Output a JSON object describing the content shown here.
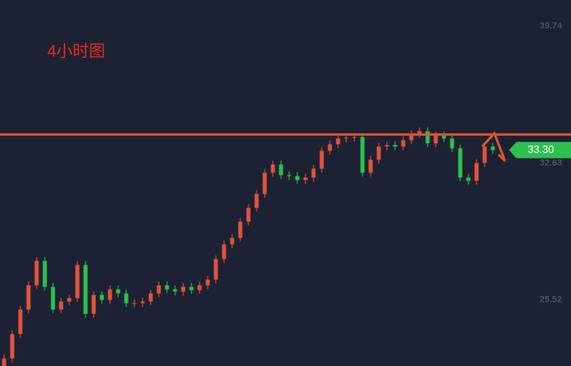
{
  "chart_data": {
    "type": "candlestick",
    "title": "4小时图",
    "open": [
      22.05,
      22.48,
      23.75,
      25.02,
      26.28,
      27.55,
      26.2,
      25.02,
      25.44,
      25.61,
      27.34,
      24.8,
      25.78,
      25.52,
      26.07,
      25.86,
      25.35,
      25.35,
      25.44,
      25.86,
      26.28,
      26.07,
      25.95,
      26.2,
      26.03,
      26.28,
      26.58,
      27.64,
      28.4,
      28.74,
      29.58,
      30.3,
      31.02,
      32.12,
      32.55,
      32.0,
      31.95,
      31.74,
      31.87,
      32.33,
      33.26,
      33.6,
      33.9,
      33.94,
      33.98,
      32.12,
      32.8,
      33.48,
      33.56,
      33.48,
      33.81,
      34.15,
      34.28,
      33.65,
      34.07,
      33.9,
      33.39,
      31.87,
      31.7,
      32.63,
      33.48
    ],
    "high": [
      22.68,
      23.95,
      25.22,
      26.48,
      27.75,
      27.75,
      26.4,
      25.64,
      25.81,
      27.54,
      27.54,
      25.98,
      25.98,
      26.27,
      26.27,
      26.06,
      25.55,
      25.64,
      26.06,
      26.48,
      26.48,
      26.27,
      26.4,
      26.4,
      26.48,
      26.78,
      27.84,
      28.6,
      28.94,
      29.78,
      30.5,
      31.22,
      32.32,
      32.75,
      32.75,
      32.2,
      32.15,
      32.07,
      32.53,
      33.46,
      33.8,
      34.1,
      34.14,
      34.18,
      34.18,
      33.0,
      33.68,
      33.76,
      33.76,
      34.01,
      34.35,
      34.48,
      34.48,
      34.27,
      34.27,
      34.1,
      33.59,
      32.07,
      32.83,
      33.68,
      33.68
    ],
    "low": [
      21.85,
      22.28,
      23.55,
      24.82,
      26.08,
      26.0,
      24.82,
      24.82,
      25.24,
      25.41,
      24.6,
      24.6,
      25.32,
      25.32,
      25.66,
      25.15,
      25.15,
      25.15,
      25.24,
      25.66,
      25.87,
      25.75,
      25.75,
      25.83,
      25.83,
      26.08,
      26.38,
      27.44,
      28.2,
      28.54,
      29.38,
      30.1,
      30.82,
      31.92,
      31.8,
      31.75,
      31.54,
      31.54,
      31.67,
      32.13,
      33.06,
      33.4,
      33.7,
      33.74,
      31.92,
      31.92,
      32.6,
      33.28,
      33.28,
      33.28,
      33.61,
      33.95,
      33.45,
      33.45,
      33.7,
      33.19,
      31.67,
      31.5,
      31.5,
      32.43,
      33.1
    ],
    "close": [
      22.48,
      23.75,
      25.02,
      26.28,
      27.55,
      26.2,
      25.02,
      25.44,
      25.61,
      27.34,
      24.8,
      25.78,
      25.52,
      26.07,
      25.86,
      25.35,
      25.35,
      25.44,
      25.86,
      26.28,
      26.07,
      25.95,
      26.2,
      26.03,
      26.28,
      26.58,
      27.64,
      28.4,
      28.74,
      29.58,
      30.3,
      31.02,
      32.12,
      32.55,
      32.0,
      31.95,
      31.74,
      31.87,
      32.33,
      33.26,
      33.6,
      33.9,
      33.94,
      33.98,
      32.12,
      32.8,
      33.48,
      33.56,
      33.48,
      33.81,
      34.15,
      34.28,
      33.65,
      34.07,
      33.9,
      33.39,
      31.87,
      31.7,
      32.63,
      33.48,
      33.3
    ],
    "up_color": "#e0533d",
    "down_color": "#2fbf4f",
    "ylim": [
      22.09,
      41.09
    ],
    "yticks": [
      25.52,
      32.63,
      39.74
    ],
    "hline": {
      "value": 34.11,
      "color": "#d9532f"
    },
    "last_price": {
      "value": 33.3,
      "label": "33.30",
      "color": "#2fbf4f"
    }
  }
}
